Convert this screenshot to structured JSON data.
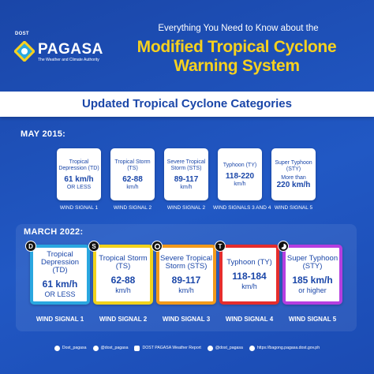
{
  "header": {
    "org_small": "DOST",
    "org_name": "PAGASA",
    "org_tagline": "The Weather and Climate Authority",
    "kicker": "Everything You Need to Know about the",
    "title_line1": "Modified Tropical Cyclone",
    "title_line2": "Warning System"
  },
  "band": {
    "title": "Updated Tropical Cyclone Categories"
  },
  "may2015": {
    "label": "MAY 2015:",
    "cards": [
      {
        "name": "Tropical Depression (TD)",
        "value": "61 km/h",
        "unit": "OR LESS",
        "signal": "WIND SIGNAL 1"
      },
      {
        "name": "Tropical Storm (TS)",
        "value": "62-88",
        "unit": "km/h",
        "signal": "WIND SIGNAL 2"
      },
      {
        "name": "Severe Tropical Storm (STS)",
        "value": "89-117",
        "unit": "km/h",
        "signal": "WIND SIGNAL 2"
      },
      {
        "name": "Typhoon (TY)",
        "value": "118-220",
        "unit": "km/h",
        "signal": "WIND SIGNALS 3 AND 4"
      },
      {
        "name": "Super Typhoon (STY)",
        "value": "220 km/h",
        "unit": "More than",
        "signal": "WIND SIGNAL 5"
      }
    ]
  },
  "march2022": {
    "label": "MARCH 2022:",
    "cards": [
      {
        "badge": "D",
        "name": "Tropical Depression (TD)",
        "value": "61 km/h",
        "unit": "OR LESS",
        "signal": "WIND SIGNAL 1",
        "color": "#2aa7e0"
      },
      {
        "badge": "S",
        "name": "Tropical Storm (TS)",
        "value": "62-88",
        "unit": "km/h",
        "signal": "WIND SIGNAL 2",
        "color": "#f2d21b"
      },
      {
        "badge": "",
        "name": "Severe Tropical Storm (STS)",
        "value": "89-117",
        "unit": "km/h",
        "signal": "WIND SIGNAL 3",
        "color": "#f29a1b"
      },
      {
        "badge": "T",
        "name": "Typhoon (TY)",
        "value": "118-184",
        "unit": "km/h",
        "signal": "WIND SIGNAL 4",
        "color": "#e52d2d"
      },
      {
        "badge": "",
        "name": "Super Typhoon (STY)",
        "value": "185 km/h",
        "unit": "or higher",
        "signal": "WIND SIGNAL 5",
        "color": "#b53ee0"
      }
    ]
  },
  "footer": [
    {
      "icon": "facebook-icon",
      "text": "Dost_pagasa"
    },
    {
      "icon": "twitter-icon",
      "text": "@dost_pagasa"
    },
    {
      "icon": "youtube-icon",
      "text": "DOST PAGASA Weather Report"
    },
    {
      "icon": "tiktok-icon",
      "text": "@dost_pagasa"
    },
    {
      "icon": "globe-icon",
      "text": "https://bagong.pagasa.dost.gov.ph"
    }
  ]
}
